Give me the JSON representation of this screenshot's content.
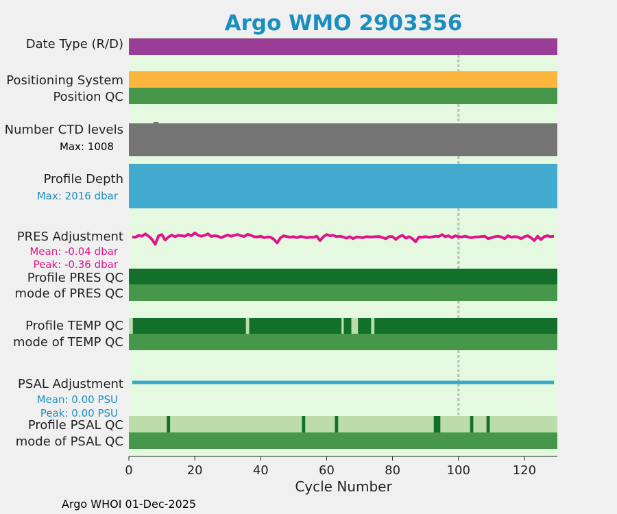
{
  "chart_data": {
    "type": "bar",
    "title": "Argo WMO 2903356",
    "xlabel": "Cycle Number",
    "xlim": [
      0,
      130
    ],
    "xticks": [
      0,
      20,
      40,
      60,
      80,
      100,
      120
    ],
    "footer": "Argo WHOI 01-Dec-2025",
    "colors": {
      "background": "#e5f8e0",
      "date_type": "#9a3d96",
      "positioning": "#fcb53f",
      "good_qc": "#46974a",
      "profile_qc_a": "#13702a",
      "profile_qc_light": "#bddbab",
      "ctd": "#747474",
      "depth": "#43aacf",
      "pres_adj": "#e0148a",
      "psal_adj": "#3ca8c8",
      "reference_line": "#bcbcbc"
    },
    "reference_cycle": 100,
    "rows": {
      "date_type": "Date Type (R/D)",
      "positioning_system": "Positioning System",
      "position_qc": "Position QC",
      "ctd_levels": "Number CTD levels",
      "ctd_max": "Max: 1008",
      "profile_depth": "Profile Depth",
      "depth_max": "Max: 2016 dbar",
      "pres_adjustment": "PRES Adjustment",
      "pres_mean": "Mean: -0.04 dbar",
      "pres_peak": "Peak: -0.36 dbar",
      "profile_pres_qc": "Profile PRES QC",
      "mode_pres_qc": "mode of PRES QC",
      "profile_temp_qc": "Profile TEMP QC",
      "mode_temp_qc": "mode of TEMP QC",
      "psal_adjustment": "PSAL Adjustment",
      "psal_mean": "Mean: 0.00 PSU",
      "psal_peak": "Peak: 0.00 PSU",
      "profile_psal_qc": "Profile PSAL QC",
      "mode_psal_qc": "mode of PSAL QC"
    },
    "cycles": {
      "first": 1,
      "last": 129
    },
    "temp_qc_light_segments": [
      [
        0,
        1.2
      ],
      [
        35.5,
        36.5
      ],
      [
        64.5,
        65.2
      ],
      [
        67.5,
        69.5
      ],
      [
        73.5,
        74.5
      ]
    ],
    "psal_qc_dark_segments": [
      [
        11.5,
        12.5
      ],
      [
        52.5,
        53.5
      ],
      [
        62.5,
        63.5
      ],
      [
        92.5,
        94.5
      ],
      [
        103.5,
        104.5
      ],
      [
        108.5,
        109.5
      ]
    ],
    "pres_adjustment_series": {
      "type": "line",
      "x": [
        1,
        2,
        3,
        4,
        5,
        6,
        7,
        8,
        9,
        10,
        11,
        12,
        13,
        14,
        15,
        16,
        17,
        18,
        19,
        20,
        21,
        22,
        23,
        24,
        25,
        26,
        27,
        28,
        29,
        30,
        31,
        32,
        33,
        34,
        35,
        36,
        37,
        38,
        39,
        40,
        41,
        42,
        43,
        44,
        45,
        46,
        47,
        48,
        49,
        50,
        51,
        52,
        53,
        54,
        55,
        56,
        57,
        58,
        59,
        60,
        61,
        62,
        63,
        64,
        65,
        66,
        67,
        68,
        69,
        70,
        71,
        72,
        73,
        74,
        75,
        76,
        77,
        78,
        79,
        80,
        81,
        82,
        83,
        84,
        85,
        86,
        87,
        88,
        89,
        90,
        91,
        92,
        93,
        94,
        95,
        96,
        97,
        98,
        99,
        100,
        101,
        102,
        103,
        104,
        105,
        106,
        107,
        108,
        109,
        110,
        111,
        112,
        113,
        114,
        115,
        116,
        117,
        118,
        119,
        120,
        121,
        122,
        123,
        124,
        125,
        126,
        127,
        128,
        129
      ],
      "y": [
        -0.05,
        -0.06,
        0.02,
        -0.02,
        0.08,
        -0.02,
        -0.15,
        -0.36,
        0.0,
        0.05,
        -0.18,
        -0.05,
        0.03,
        -0.04,
        0.02,
        0.0,
        -0.02,
        0.06,
        0.0,
        0.12,
        0.02,
        -0.02,
        0.02,
        0.08,
        -0.03,
        0.0,
        -0.02,
        -0.08,
        -0.02,
        0.03,
        -0.02,
        0.02,
        0.05,
        0.0,
        -0.03,
        0.06,
        0.02,
        -0.04,
        -0.05,
        -0.02,
        -0.08,
        -0.05,
        -0.06,
        -0.15,
        -0.3,
        -0.08,
        0.0,
        -0.04,
        -0.06,
        -0.04,
        -0.08,
        -0.03,
        -0.05,
        -0.08,
        -0.06,
        -0.06,
        -0.02,
        -0.2,
        -0.04,
        0.05,
        0.0,
        0.02,
        -0.04,
        -0.02,
        -0.05,
        -0.1,
        -0.04,
        -0.12,
        -0.05,
        -0.06,
        -0.08,
        -0.04,
        -0.05,
        -0.05,
        -0.04,
        -0.03,
        -0.08,
        -0.12,
        -0.03,
        -0.04,
        -0.15,
        -0.04,
        0.02,
        -0.1,
        -0.04,
        -0.12,
        -0.25,
        -0.05,
        -0.06,
        -0.04,
        -0.06,
        -0.05,
        -0.02,
        -0.03,
        0.05,
        -0.04,
        0.0,
        -0.08,
        0.0,
        -0.04,
        -0.05,
        -0.02,
        -0.06,
        -0.08,
        -0.05,
        -0.05,
        -0.03,
        -0.02,
        -0.12,
        -0.08,
        -0.04,
        -0.02,
        -0.05,
        -0.12,
        0.0,
        -0.06,
        -0.04,
        -0.05,
        -0.12,
        -0.04,
        0.0,
        -0.08,
        -0.2,
        -0.02,
        -0.16,
        -0.04,
        0.0,
        -0.04,
        -0.02
      ]
    }
  }
}
